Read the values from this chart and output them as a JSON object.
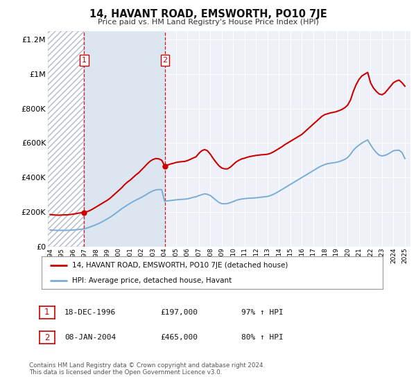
{
  "title": "14, HAVANT ROAD, EMSWORTH, PO10 7JE",
  "subtitle": "Price paid vs. HM Land Registry's House Price Index (HPI)",
  "ylim": [
    0,
    1250000
  ],
  "xlim_start": 1993.8,
  "xlim_end": 2025.5,
  "yticks": [
    0,
    200000,
    400000,
    600000,
    800000,
    1000000,
    1200000
  ],
  "ytick_labels": [
    "£0",
    "£200K",
    "£400K",
    "£600K",
    "£800K",
    "£1M",
    "£1.2M"
  ],
  "xtick_years": [
    1994,
    1995,
    1996,
    1997,
    1998,
    1999,
    2000,
    2001,
    2002,
    2003,
    2004,
    2005,
    2006,
    2007,
    2008,
    2009,
    2010,
    2011,
    2012,
    2013,
    2014,
    2015,
    2016,
    2017,
    2018,
    2019,
    2020,
    2021,
    2022,
    2023,
    2024,
    2025
  ],
  "bg_color": "#eef2f8",
  "hatch_region_start": 1993.8,
  "hatch_region_end": 1996.97,
  "shade_region_start": 1996.97,
  "shade_region_end": 2004.03,
  "transaction1_x": 1996.97,
  "transaction1_y": 197000,
  "transaction2_x": 2004.03,
  "transaction2_y": 465000,
  "red_line_color": "#cc0000",
  "blue_line_color": "#7aadd4",
  "legend_label_red": "14, HAVANT ROAD, EMSWORTH, PO10 7JE (detached house)",
  "legend_label_blue": "HPI: Average price, detached house, Havant",
  "table_row1": [
    "1",
    "18-DEC-1996",
    "£197,000",
    "97% ↑ HPI"
  ],
  "table_row2": [
    "2",
    "08-JAN-2004",
    "£465,000",
    "80% ↑ HPI"
  ],
  "footnote1": "Contains HM Land Registry data © Crown copyright and database right 2024.",
  "footnote2": "This data is licensed under the Open Government Licence v3.0.",
  "red_hpi_x": [
    1994.0,
    1994.25,
    1994.5,
    1994.75,
    1995.0,
    1995.25,
    1995.5,
    1995.75,
    1996.0,
    1996.25,
    1996.5,
    1996.75,
    1996.97,
    1997.25,
    1997.5,
    1997.75,
    1998.0,
    1998.25,
    1998.5,
    1998.75,
    1999.0,
    1999.25,
    1999.5,
    1999.75,
    2000.0,
    2000.25,
    2000.5,
    2000.75,
    2001.0,
    2001.25,
    2001.5,
    2001.75,
    2002.0,
    2002.25,
    2002.5,
    2002.75,
    2003.0,
    2003.25,
    2003.5,
    2003.75,
    2004.03,
    2004.25,
    2004.5,
    2004.75,
    2005.0,
    2005.25,
    2005.5,
    2005.75,
    2006.0,
    2006.25,
    2006.5,
    2006.75,
    2007.0,
    2007.25,
    2007.5,
    2007.75,
    2008.0,
    2008.25,
    2008.5,
    2008.75,
    2009.0,
    2009.25,
    2009.5,
    2009.75,
    2010.0,
    2010.25,
    2010.5,
    2010.75,
    2011.0,
    2011.25,
    2011.5,
    2011.75,
    2012.0,
    2012.25,
    2012.5,
    2012.75,
    2013.0,
    2013.25,
    2013.5,
    2013.75,
    2014.0,
    2014.25,
    2014.5,
    2014.75,
    2015.0,
    2015.25,
    2015.5,
    2015.75,
    2016.0,
    2016.25,
    2016.5,
    2016.75,
    2017.0,
    2017.25,
    2017.5,
    2017.75,
    2018.0,
    2018.25,
    2018.5,
    2018.75,
    2019.0,
    2019.25,
    2019.5,
    2019.75,
    2020.0,
    2020.25,
    2020.5,
    2020.75,
    2021.0,
    2021.25,
    2021.5,
    2021.75,
    2022.0,
    2022.25,
    2022.5,
    2022.75,
    2023.0,
    2023.25,
    2023.5,
    2023.75,
    2024.0,
    2024.25,
    2024.5,
    2024.75,
    2025.0
  ],
  "red_hpi_y": [
    185000,
    183000,
    182000,
    181000,
    182000,
    183000,
    183000,
    185000,
    187000,
    190000,
    193000,
    196000,
    197000,
    202000,
    209000,
    218000,
    228000,
    238000,
    248000,
    258000,
    268000,
    280000,
    295000,
    310000,
    325000,
    340000,
    358000,
    373000,
    385000,
    400000,
    415000,
    428000,
    445000,
    462000,
    480000,
    495000,
    505000,
    510000,
    508000,
    500000,
    465000,
    472000,
    478000,
    482000,
    487000,
    490000,
    492000,
    493000,
    498000,
    505000,
    513000,
    520000,
    540000,
    555000,
    562000,
    555000,
    535000,
    510000,
    488000,
    468000,
    455000,
    450000,
    450000,
    460000,
    475000,
    490000,
    500000,
    508000,
    512000,
    518000,
    522000,
    525000,
    528000,
    530000,
    532000,
    533000,
    535000,
    540000,
    548000,
    558000,
    568000,
    578000,
    590000,
    600000,
    610000,
    620000,
    630000,
    640000,
    650000,
    665000,
    680000,
    695000,
    710000,
    725000,
    740000,
    755000,
    765000,
    770000,
    775000,
    778000,
    782000,
    788000,
    795000,
    805000,
    820000,
    850000,
    900000,
    940000,
    970000,
    990000,
    1000000,
    1010000,
    950000,
    920000,
    900000,
    885000,
    880000,
    890000,
    910000,
    930000,
    950000,
    960000,
    965000,
    950000,
    930000
  ],
  "blue_hpi_x": [
    1994.0,
    1994.25,
    1994.5,
    1994.75,
    1995.0,
    1995.25,
    1995.5,
    1995.75,
    1996.0,
    1996.25,
    1996.5,
    1996.75,
    1997.0,
    1997.25,
    1997.5,
    1997.75,
    1998.0,
    1998.25,
    1998.5,
    1998.75,
    1999.0,
    1999.25,
    1999.5,
    1999.75,
    2000.0,
    2000.25,
    2000.5,
    2000.75,
    2001.0,
    2001.25,
    2001.5,
    2001.75,
    2002.0,
    2002.25,
    2002.5,
    2002.75,
    2003.0,
    2003.25,
    2003.5,
    2003.75,
    2004.0,
    2004.25,
    2004.5,
    2004.75,
    2005.0,
    2005.25,
    2005.5,
    2005.75,
    2006.0,
    2006.25,
    2006.5,
    2006.75,
    2007.0,
    2007.25,
    2007.5,
    2007.75,
    2008.0,
    2008.25,
    2008.5,
    2008.75,
    2009.0,
    2009.25,
    2009.5,
    2009.75,
    2010.0,
    2010.25,
    2010.5,
    2010.75,
    2011.0,
    2011.25,
    2011.5,
    2011.75,
    2012.0,
    2012.25,
    2012.5,
    2012.75,
    2013.0,
    2013.25,
    2013.5,
    2013.75,
    2014.0,
    2014.25,
    2014.5,
    2014.75,
    2015.0,
    2015.25,
    2015.5,
    2015.75,
    2016.0,
    2016.25,
    2016.5,
    2016.75,
    2017.0,
    2017.25,
    2017.5,
    2017.75,
    2018.0,
    2018.25,
    2018.5,
    2018.75,
    2019.0,
    2019.25,
    2019.5,
    2019.75,
    2020.0,
    2020.25,
    2020.5,
    2020.75,
    2021.0,
    2021.25,
    2021.5,
    2021.75,
    2022.0,
    2022.25,
    2022.5,
    2022.75,
    2023.0,
    2023.25,
    2023.5,
    2023.75,
    2024.0,
    2024.25,
    2024.5,
    2024.75,
    2025.0
  ],
  "blue_hpi_y": [
    95000,
    94000,
    93000,
    93000,
    93000,
    93000,
    93000,
    94000,
    95000,
    96000,
    98000,
    100000,
    102000,
    107000,
    113000,
    119000,
    126000,
    133000,
    141000,
    150000,
    160000,
    170000,
    181000,
    193000,
    206000,
    218000,
    229000,
    240000,
    250000,
    260000,
    269000,
    277000,
    285000,
    295000,
    305000,
    315000,
    323000,
    328000,
    330000,
    329000,
    262000,
    264000,
    266000,
    268000,
    270000,
    272000,
    273000,
    274000,
    276000,
    280000,
    285000,
    288000,
    295000,
    300000,
    305000,
    302000,
    295000,
    282000,
    268000,
    255000,
    248000,
    247000,
    249000,
    254000,
    260000,
    267000,
    272000,
    275000,
    277000,
    279000,
    280000,
    281000,
    282000,
    284000,
    286000,
    288000,
    290000,
    295000,
    302000,
    310000,
    320000,
    330000,
    340000,
    350000,
    360000,
    370000,
    380000,
    390000,
    400000,
    410000,
    420000,
    430000,
    440000,
    450000,
    460000,
    468000,
    475000,
    480000,
    483000,
    485000,
    488000,
    492000,
    498000,
    505000,
    516000,
    535000,
    558000,
    575000,
    588000,
    600000,
    610000,
    618000,
    590000,
    565000,
    545000,
    530000,
    525000,
    528000,
    535000,
    545000,
    555000,
    558000,
    558000,
    545000,
    510000
  ]
}
